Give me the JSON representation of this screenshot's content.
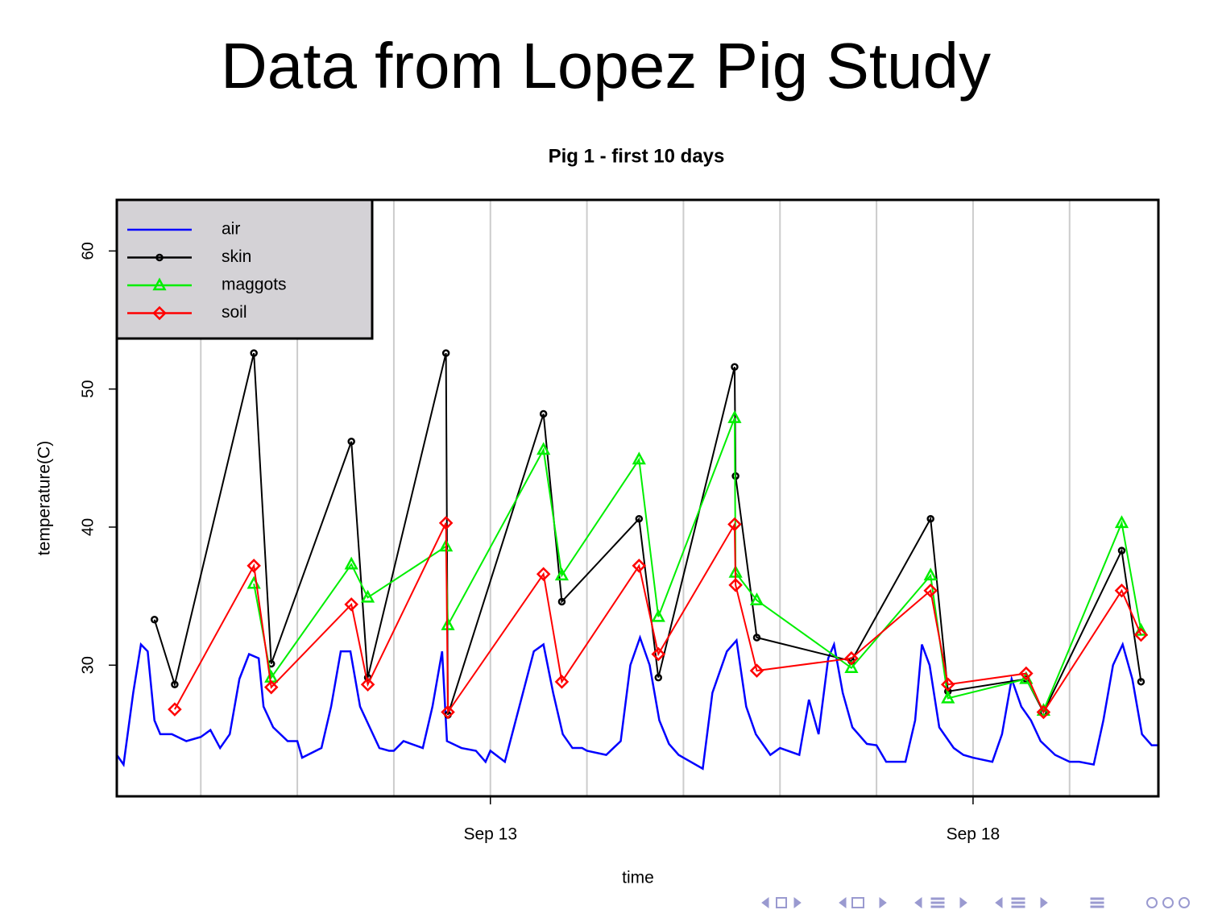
{
  "slide_title": "Data from Lopez Pig Study",
  "chart_data": {
    "type": "line",
    "title": "Pig 1 - first 10 days",
    "x_label": "time",
    "y_label": "temperature(C)",
    "xlim": [
      9.13,
      19.92
    ],
    "ylim": [
      20.5,
      63.7
    ],
    "xticks": [
      {
        "value": 13,
        "label": "Sep 13"
      },
      {
        "value": 18,
        "label": "Sep 18"
      }
    ],
    "yticks": [
      30,
      40,
      50,
      60
    ],
    "xgrid": [
      10,
      11,
      12,
      13,
      14,
      15,
      16,
      17,
      18,
      19
    ],
    "legend": "topleft",
    "series": [
      {
        "name": "air",
        "color": "#0000ff",
        "marker": "none",
        "x": [
          9.13,
          9.2,
          9.3,
          9.38,
          9.45,
          9.52,
          9.58,
          9.7,
          9.85,
          10.0,
          10.1,
          10.2,
          10.3,
          10.4,
          10.5,
          10.6,
          10.65,
          10.75,
          10.9,
          11.0,
          11.05,
          11.25,
          11.35,
          11.45,
          11.55,
          11.65,
          11.75,
          11.85,
          11.95,
          12.0,
          12.1,
          12.3,
          12.4,
          12.5,
          12.55,
          12.7,
          12.85,
          12.95,
          13.0,
          13.15,
          13.3,
          13.45,
          13.55,
          13.65,
          13.75,
          13.85,
          13.95,
          14.0,
          14.2,
          14.35,
          14.45,
          14.55,
          14.65,
          14.75,
          14.85,
          14.95,
          15.0,
          15.2,
          15.3,
          15.45,
          15.55,
          15.65,
          15.75,
          15.9,
          16.0,
          16.2,
          16.3,
          16.4,
          16.5,
          16.56,
          16.65,
          16.75,
          16.9,
          17.0,
          17.1,
          17.3,
          17.4,
          17.47,
          17.55,
          17.65,
          17.8,
          17.9,
          18.0,
          18.2,
          18.3,
          18.4,
          18.5,
          18.6,
          18.7,
          18.85,
          19.0,
          19.1,
          19.25,
          19.35,
          19.45,
          19.55,
          19.65,
          19.75,
          19.85,
          19.92
        ],
        "values": [
          23.5,
          22.8,
          28,
          31.5,
          31,
          26,
          25,
          25,
          24.5,
          24.8,
          25.3,
          24,
          25,
          29,
          30.8,
          30.5,
          27,
          25.5,
          24.5,
          24.5,
          23.3,
          24,
          27,
          31,
          31,
          27,
          25.5,
          24,
          23.8,
          23.8,
          24.5,
          24,
          27,
          31,
          24.5,
          24,
          23.8,
          23,
          23.8,
          23,
          27,
          31,
          31.5,
          28,
          25,
          24,
          24,
          23.8,
          23.5,
          24.5,
          30,
          32,
          30,
          26,
          24.3,
          23.5,
          23.3,
          22.5,
          28,
          31,
          31.8,
          27,
          25,
          23.5,
          24,
          23.5,
          27.5,
          25,
          30.5,
          31.5,
          28,
          25.5,
          24.3,
          24.2,
          23,
          23,
          26,
          31.5,
          30,
          25.5,
          24,
          23.5,
          23.3,
          23,
          25,
          29,
          27,
          26,
          24.5,
          23.5,
          23,
          23,
          22.8,
          26,
          30,
          31.5,
          29,
          25,
          24.2,
          24.2
        ]
      },
      {
        "name": "skin",
        "color": "#000000",
        "marker": "circle",
        "x": [
          9.52,
          9.73,
          10.55,
          10.73,
          11.56,
          11.73,
          12.54,
          12.56,
          13.55,
          13.74,
          14.54,
          14.74,
          15.53,
          15.54,
          15.76,
          16.74,
          17.56,
          17.74,
          18.55,
          18.73,
          19.54,
          19.74
        ],
        "values": [
          33.3,
          28.6,
          52.6,
          30.1,
          46.2,
          29.1,
          52.6,
          26.4,
          48.2,
          34.6,
          40.6,
          29.1,
          51.6,
          43.7,
          32.0,
          30.3,
          40.6,
          28.1,
          29.0,
          26.6,
          38.3,
          28.8
        ]
      },
      {
        "name": "maggots",
        "color": "#00ee00",
        "marker": "triangle",
        "x": [
          9.52,
          9.73,
          10.55,
          10.73,
          11.56,
          11.73,
          12.54,
          12.56,
          13.55,
          13.74,
          14.54,
          14.74,
          15.53,
          15.54,
          15.76,
          16.74,
          17.56,
          17.74,
          18.55,
          18.73,
          19.54,
          19.74
        ],
        "values": [
          null,
          null,
          35.9,
          29.1,
          37.3,
          34.9,
          38.6,
          32.9,
          45.6,
          36.5,
          44.9,
          33.5,
          47.9,
          36.7,
          34.7,
          29.8,
          36.5,
          27.6,
          29.0,
          26.7,
          40.3,
          32.5
        ]
      },
      {
        "name": "soil",
        "color": "#ff0000",
        "marker": "diamond",
        "x": [
          9.52,
          9.73,
          10.55,
          10.73,
          11.56,
          11.73,
          12.54,
          12.56,
          13.55,
          13.74,
          14.54,
          14.74,
          15.53,
          15.54,
          15.76,
          16.74,
          17.56,
          17.74,
          18.55,
          18.73,
          19.54,
          19.74
        ],
        "values": [
          null,
          26.8,
          37.2,
          28.4,
          34.4,
          28.6,
          40.3,
          26.6,
          36.6,
          28.8,
          37.2,
          30.8,
          40.2,
          35.8,
          29.6,
          30.5,
          35.4,
          28.6,
          29.4,
          26.6,
          35.4,
          32.2
        ]
      }
    ]
  }
}
